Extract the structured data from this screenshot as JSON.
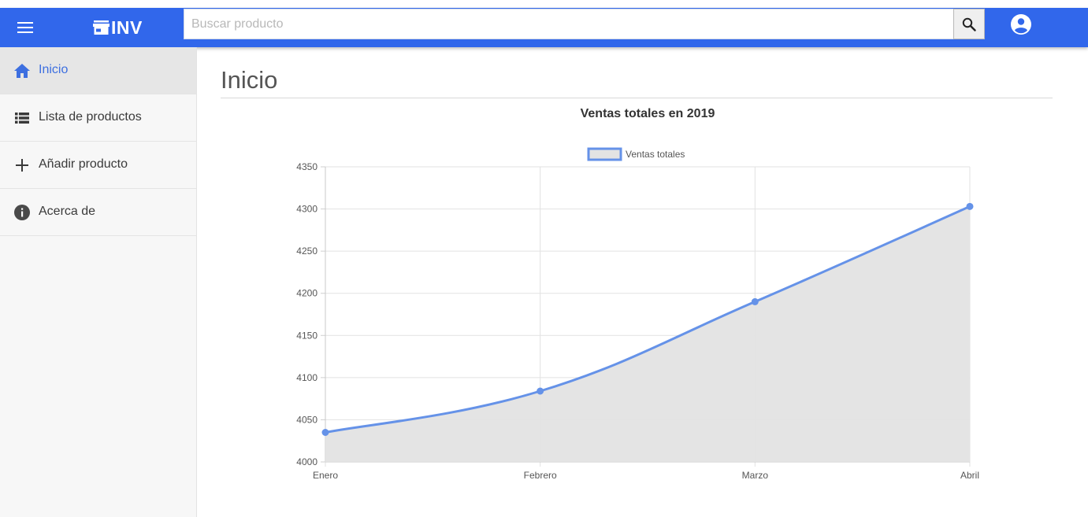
{
  "header": {
    "brand": "INV",
    "search_placeholder": "Buscar producto",
    "search_value": "",
    "icons": {
      "menu": "menu-icon",
      "store": "store-icon",
      "search": "search-icon",
      "account": "account-circle-icon"
    },
    "color": "#3167eb"
  },
  "sidebar": {
    "items": [
      {
        "label": "Inicio",
        "icon": "home-icon",
        "active": true
      },
      {
        "label": "Lista de productos",
        "icon": "list-icon",
        "active": false
      },
      {
        "label": "Añadir producto",
        "icon": "plus-icon",
        "active": false
      },
      {
        "label": "Acerca de",
        "icon": "info-icon",
        "active": false
      }
    ],
    "active_color": "#3d6fe0"
  },
  "main": {
    "title": "Inicio"
  },
  "chart_data": {
    "type": "area",
    "title": "Ventas totales en 2019",
    "categories": [
      "Enero",
      "Febrero",
      "Marzo",
      "Abril"
    ],
    "series": [
      {
        "name": "Ventas totales",
        "values": [
          4035,
          4084,
          4190,
          4303
        ],
        "color": "#6592e8",
        "fill": "#e3e3e3"
      }
    ],
    "ylim": [
      4000,
      4350
    ],
    "yticks": [
      4000,
      4050,
      4100,
      4150,
      4200,
      4250,
      4300,
      4350
    ],
    "grid": true,
    "legend": "top-center",
    "smooth": true
  }
}
